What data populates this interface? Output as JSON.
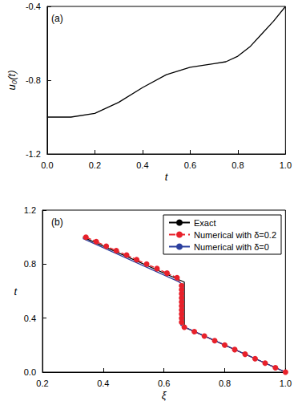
{
  "chart_data": [
    {
      "type": "line",
      "title": "(a)",
      "xlabel": "t",
      "ylabel": "u₀(t)",
      "xlim": [
        0,
        1
      ],
      "xticks": [
        {
          "value": 0,
          "label": "0.0"
        },
        0.2,
        0.4,
        0.6,
        0.8,
        {
          "value": 1,
          "label": "1.0"
        }
      ],
      "ylim": [
        -1.2,
        -0.4
      ],
      "yticks": [
        -1.2,
        -0.8,
        -0.4
      ],
      "grid": false,
      "x": [
        0,
        0.1,
        0.2,
        0.3,
        0.4,
        0.5,
        0.6,
        0.7,
        0.75,
        0.8,
        0.85,
        0.9,
        0.95,
        1.0
      ],
      "values": [
        -1.0,
        -1.0,
        -0.98,
        -0.92,
        -0.84,
        -0.77,
        -0.73,
        -0.71,
        -0.7,
        -0.67,
        -0.62,
        -0.55,
        -0.48,
        -0.4
      ],
      "color": "#000000"
    },
    {
      "type": "line",
      "title": "(b)",
      "xlabel": "ξ",
      "ylabel": "t",
      "xlim": [
        0.2,
        1
      ],
      "xticks": [
        0.2,
        0.4,
        0.6,
        0.8,
        {
          "value": 1,
          "label": "1.0"
        }
      ],
      "ylim": [
        0,
        1.2
      ],
      "yticks": [
        {
          "value": 0,
          "label": "0.0"
        },
        0.4,
        0.8,
        1.2
      ],
      "grid": false,
      "legend": "top-right",
      "series": [
        {
          "name": "Exact",
          "color": "#000000",
          "line_style": "solid",
          "marker": "none",
          "x": [
            1.0,
            0.667,
            0.667,
            0.333
          ],
          "values": [
            0.0,
            0.333,
            0.667,
            1.0
          ]
        },
        {
          "name": "Numerical with δ=0.2",
          "color": "#e8212b",
          "line_style": "dashed",
          "marker": "circle",
          "x": [
            1.0,
            0.967,
            0.933,
            0.9,
            0.867,
            0.833,
            0.8,
            0.767,
            0.733,
            0.7,
            0.667,
            0.658,
            0.658,
            0.658,
            0.658,
            0.658,
            0.658,
            0.658,
            0.658,
            0.658,
            0.658,
            0.643,
            0.61,
            0.577,
            0.543,
            0.51,
            0.477,
            0.443,
            0.41,
            0.377,
            0.343
          ],
          "values": [
            0.0,
            0.033,
            0.067,
            0.1,
            0.133,
            0.167,
            0.2,
            0.233,
            0.267,
            0.3,
            0.333,
            0.37,
            0.4,
            0.43,
            0.46,
            0.49,
            0.52,
            0.55,
            0.58,
            0.61,
            0.64,
            0.7,
            0.733,
            0.767,
            0.8,
            0.833,
            0.867,
            0.9,
            0.933,
            0.967,
            1.0
          ]
        },
        {
          "name": "Numerical with δ=0",
          "color": "#2b3f9e",
          "line_style": "solid",
          "marker": "none",
          "x": [
            1.0,
            0.662,
            0.655,
            0.655,
            0.648,
            0.333
          ],
          "values": [
            0.0,
            0.34,
            0.35,
            0.66,
            0.67,
            0.99
          ]
        }
      ]
    }
  ]
}
